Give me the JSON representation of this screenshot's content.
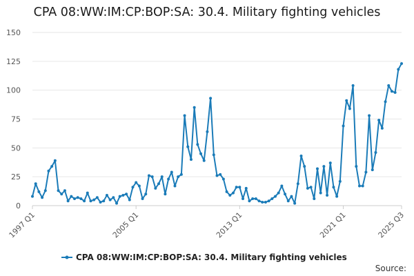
{
  "chart_data": {
    "type": "line",
    "title": "CPA 08:WW:IM:CP:BOP:SA: 30.4. Military fighting vehicles",
    "xlabel": "",
    "ylabel": "",
    "ylim": [
      0,
      150
    ],
    "y_ticks": [
      "0",
      "25",
      "50",
      "75",
      "100",
      "125",
      "150"
    ],
    "x_ticks": [
      "1997 Q1",
      "2005 Q1",
      "2013 Q1",
      "2021 Q1",
      "2025 Q3"
    ],
    "x_start": "1997 Q1",
    "x_end": "2025 Q3",
    "grid": true,
    "legend_position": "bottom",
    "series": [
      {
        "name": "CPA 08:WW:IM:CP:BOP:SA: 30.4. Military fighting vehicles",
        "color": "#1a7bb8",
        "values": [
          8,
          19,
          12,
          7,
          13,
          30,
          34,
          39,
          13,
          10,
          13,
          4,
          8,
          6,
          7,
          6,
          4,
          11,
          4,
          5,
          7,
          3,
          4,
          9,
          5,
          7,
          2,
          8,
          9,
          10,
          5,
          16,
          20,
          17,
          6,
          10,
          26,
          25,
          15,
          19,
          25,
          10,
          23,
          29,
          17,
          25,
          27,
          78,
          51,
          40,
          85,
          53,
          45,
          39,
          64,
          93,
          44,
          26,
          27,
          23,
          12,
          9,
          11,
          16,
          16,
          6,
          15,
          4,
          6,
          6,
          4,
          3,
          3,
          4,
          6,
          8,
          11,
          17,
          10,
          4,
          8,
          2,
          19,
          43,
          34,
          15,
          16,
          6,
          32,
          11,
          34,
          9,
          37,
          16,
          8,
          21,
          69,
          91,
          84,
          104,
          34,
          17,
          17,
          29,
          78,
          31,
          46,
          74,
          67,
          90,
          104,
          99,
          98,
          118,
          123
        ]
      }
    ]
  },
  "legend": {
    "label": "CPA 08:WW:IM:CP:BOP:SA: 30.4. Military fighting vehicles"
  },
  "source_label": "Source:"
}
